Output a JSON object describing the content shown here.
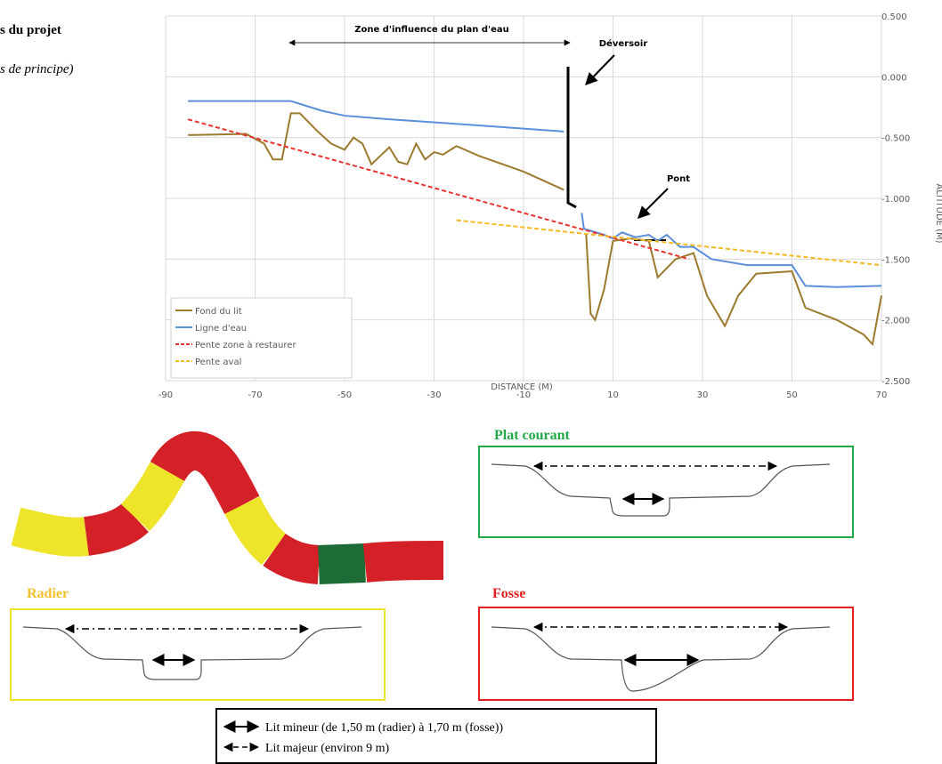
{
  "header": {
    "line1": "s du projet",
    "line2": "s de principe)"
  },
  "chart_data": {
    "type": "line",
    "annotations": [
      {
        "text": "Zone d'influence du plan d'eau"
      },
      {
        "text": "Déversoir"
      },
      {
        "text": "Pont"
      }
    ],
    "xlabel": "DISTANCE (M)",
    "ylabel": "ALTITUDE (M)",
    "xlim": [
      -90,
      70
    ],
    "ylim": [
      -2.5,
      0.5
    ],
    "xticks": [
      -90,
      -70,
      -50,
      -30,
      -10,
      10,
      30,
      50,
      70
    ],
    "yticks": [
      {
        "value": 0.5,
        "label": "0.500"
      },
      {
        "value": 0,
        "label": "0.000"
      },
      {
        "value": -0.5,
        "label": "-0.500"
      },
      {
        "value": -1,
        "label": "-1.000"
      },
      {
        "value": -1.5,
        "label": "-1.500"
      },
      {
        "value": -2,
        "label": "-2.000"
      },
      {
        "value": -2.5,
        "label": "-2.500"
      }
    ],
    "grid": true,
    "legend": "lower left",
    "series": [
      {
        "name": "Fond du lit",
        "color": "#9c7a2e",
        "dashed": false,
        "x": [
          -85,
          -72,
          -68,
          -66,
          -64,
          -62,
          -60,
          -56,
          -53,
          -50,
          -48,
          -46,
          -44,
          -42,
          -40,
          -38,
          -36,
          -34,
          -32,
          -30,
          -28,
          -25,
          -20,
          -10,
          -1,
          2,
          4,
          5,
          6,
          8,
          10,
          14,
          18,
          20,
          24,
          28,
          31,
          35,
          38,
          42,
          50,
          53,
          60,
          66,
          68,
          70
        ],
        "values": [
          -0.48,
          -0.47,
          -0.55,
          -0.68,
          -0.68,
          -0.3,
          -0.3,
          -0.45,
          -0.55,
          -0.6,
          -0.5,
          -0.55,
          -0.72,
          -0.65,
          -0.58,
          -0.7,
          -0.72,
          -0.55,
          -0.68,
          -0.62,
          -0.64,
          -0.57,
          -0.65,
          -0.78,
          -0.93,
          null,
          -1.3,
          -1.95,
          -2.0,
          -1.75,
          -1.35,
          -1.33,
          -1.35,
          -1.65,
          -1.5,
          -1.45,
          -1.8,
          -2.05,
          -1.8,
          -1.62,
          -1.6,
          -1.9,
          -2.0,
          -2.12,
          -2.2,
          -1.8
        ]
      },
      {
        "name": "Ligne d'eau",
        "color": "#5b8fd9",
        "dashed": false,
        "x": [
          -85,
          -62,
          -55,
          -50,
          -40,
          -20,
          -1,
          2,
          3,
          3.5,
          8,
          10,
          12,
          15,
          18,
          20,
          22,
          25,
          28,
          32,
          40,
          50,
          53,
          60,
          70
        ],
        "values": [
          -0.2,
          -0.2,
          -0.28,
          -0.32,
          -0.35,
          -0.4,
          -0.45,
          null,
          -1.12,
          -1.25,
          -1.3,
          -1.33,
          -1.28,
          -1.32,
          -1.3,
          -1.35,
          -1.3,
          -1.4,
          -1.4,
          -1.5,
          -1.55,
          -1.55,
          -1.72,
          -1.73,
          -1.72
        ]
      },
      {
        "name": "Pente zone à restaurer",
        "color": "#e8332e",
        "dashed": true,
        "x": [
          -85,
          27
        ],
        "values": [
          -0.35,
          -1.5
        ]
      },
      {
        "name": "Pente aval",
        "color": "#f5b921",
        "dashed": true,
        "x": [
          -25,
          70
        ],
        "values": [
          -1.18,
          -1.55
        ]
      }
    ]
  },
  "diagram": {
    "sections": [
      {
        "label": "Plat courant"
      },
      {
        "label": "Radier"
      },
      {
        "label": "Fosse"
      }
    ],
    "legend": [
      "Lit mineur (de 1,50 m (radier) à 1,70 m (fosse))",
      "Lit majeur (environ 9 m)"
    ]
  }
}
